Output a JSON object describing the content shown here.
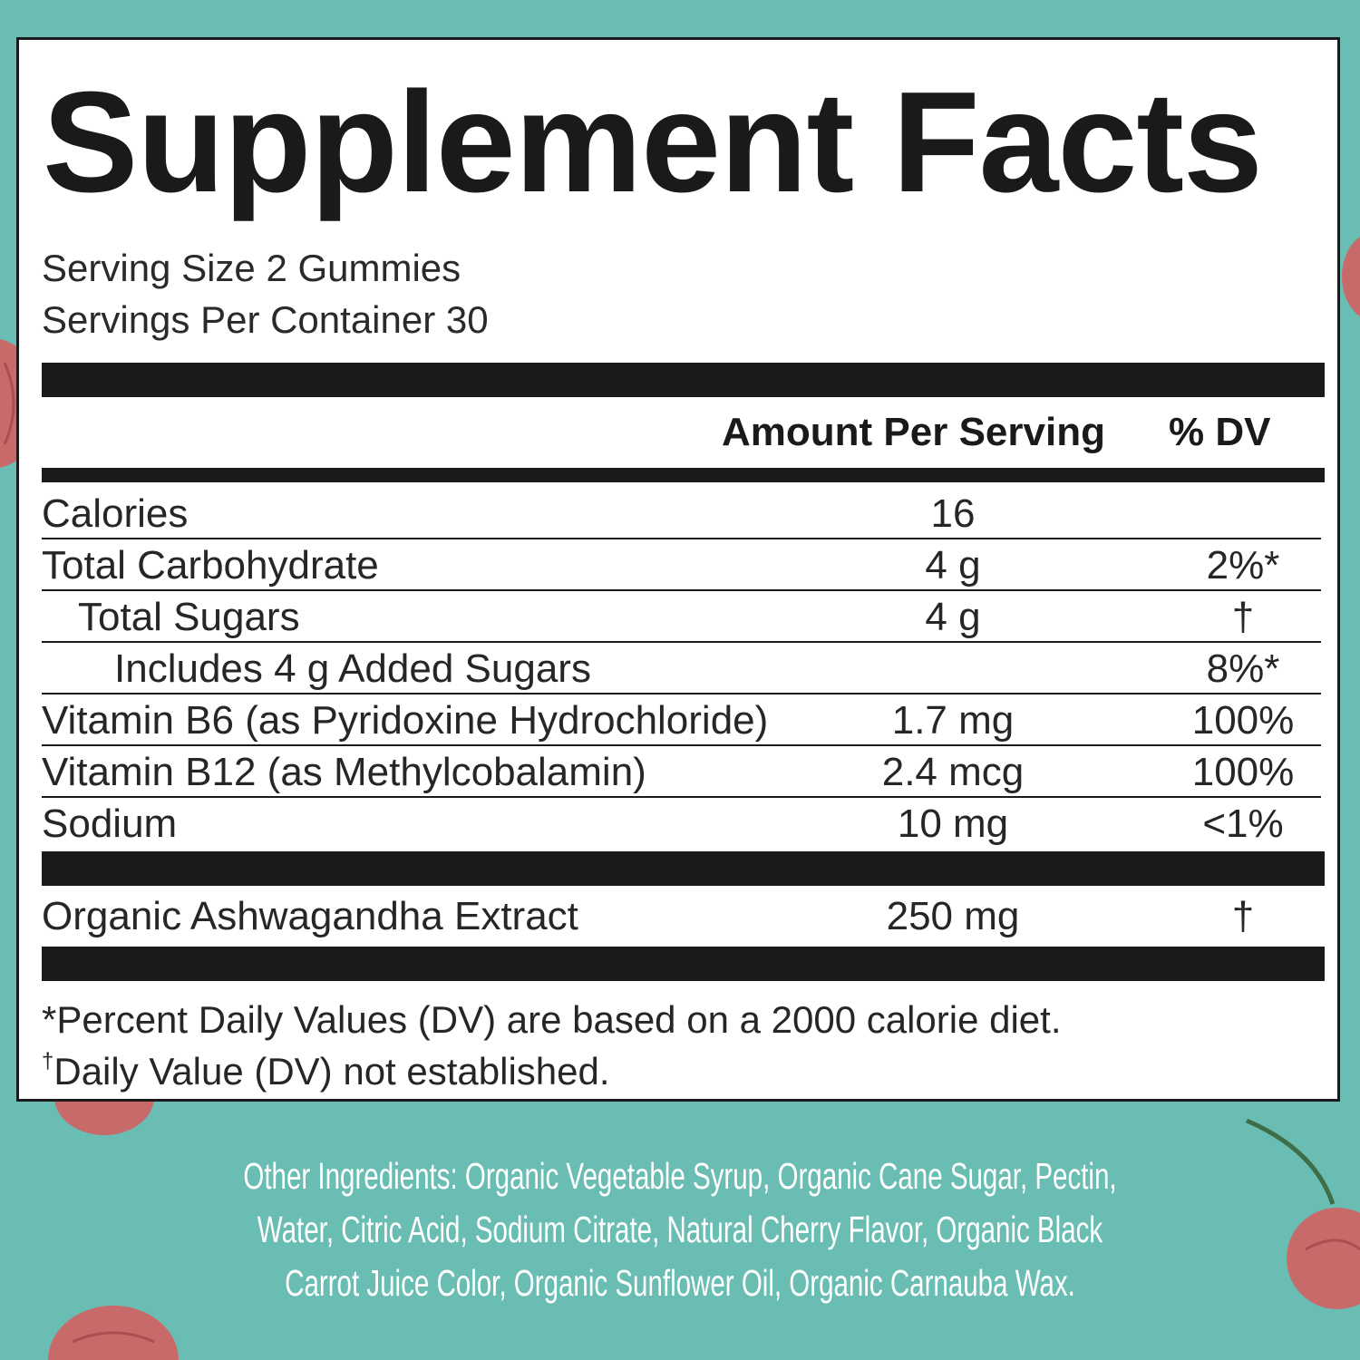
{
  "colors": {
    "background": "#69bdb2",
    "panel": "#ffffff",
    "ink": "#1a1a1a",
    "cherry": "#c96a6a",
    "ingredients_text": "#ffffff"
  },
  "label": {
    "title": "Supplement Facts",
    "serving_size": "Serving Size 2 Gummies",
    "servings_per_container": "Servings Per Container 30",
    "header_amount": "Amount Per Serving",
    "header_dv": "% DV",
    "rows": [
      {
        "name": "Calories",
        "amount": "16",
        "dv": ""
      },
      {
        "name": "Total Carbohydrate",
        "amount": "4 g",
        "dv": "2%*"
      },
      {
        "name": "Total Sugars",
        "amount": "4 g",
        "dv": "†"
      },
      {
        "name": "Includes 4 g Added Sugars",
        "amount": "",
        "dv": "8%*"
      },
      {
        "name": "Vitamin B6 (as Pyridoxine Hydrochloride)",
        "amount": "1.7 mg",
        "dv": "100%"
      },
      {
        "name": "Vitamin B12 (as Methylcobalamin)",
        "amount": "2.4 mcg",
        "dv": "100%"
      },
      {
        "name": "Sodium",
        "amount": "10 mg",
        "dv": "<1%"
      }
    ],
    "extract": {
      "name": "Organic Ashwagandha Extract",
      "amount": "250 mg",
      "dv": "†"
    },
    "footnote_1": "*Percent Daily Values (DV) are based on a 2000 calorie diet.",
    "footnote_2_mark": "†",
    "footnote_2": "Daily Value (DV) not established."
  },
  "other_ingredients": "Other Ingredients: Organic Vegetable Syrup, Organic Cane Sugar, Pectin, Water, Citric Acid, Sodium Citrate, Natural Cherry Flavor, Organic Black Carrot Juice Color, Organic Sunflower Oil, Organic Carnauba Wax.",
  "icons": [
    "cherry-icon"
  ]
}
